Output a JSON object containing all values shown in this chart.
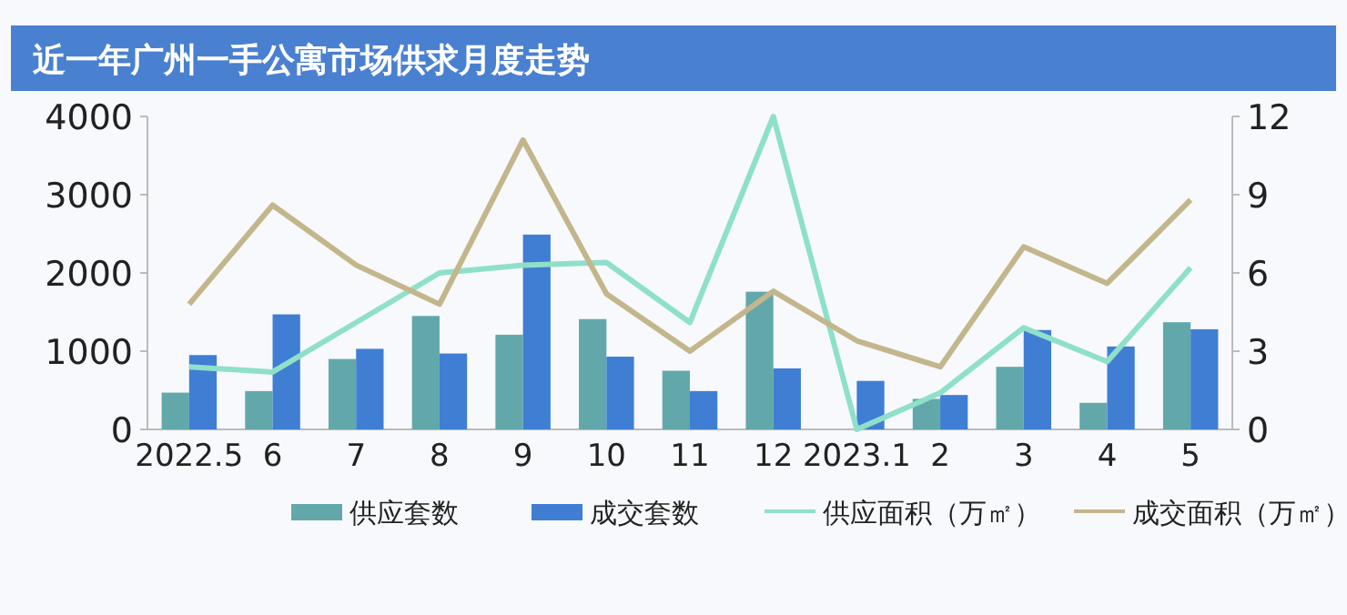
{
  "chart_data": {
    "type": "bar",
    "title": "近一年广州一手公寓市场供求月度走势",
    "categories": [
      "2022.5",
      "6",
      "7",
      "8",
      "9",
      "10",
      "11",
      "12",
      "2023.1",
      "2",
      "3",
      "4",
      "5"
    ],
    "series": [
      {
        "name": "供应套数",
        "color": "#62a8ab",
        "values": [
          470,
          490,
          900,
          1450,
          1210,
          1410,
          750,
          1760,
          0,
          390,
          800,
          340,
          1370
        ]
      },
      {
        "name": "成交套数",
        "color": "#3f7ed3",
        "values": [
          950,
          1470,
          1030,
          970,
          2490,
          930,
          490,
          780,
          620,
          440,
          1270,
          1060,
          1280
        ]
      },
      {
        "name": "供应面积（万㎡）",
        "type": "line",
        "axis": "y2",
        "color": "#8fe0c9",
        "values": [
          2.4,
          2.2,
          4.1,
          6.0,
          6.3,
          6.4,
          4.1,
          12.0,
          0,
          1.4,
          3.9,
          2.6,
          6.2
        ]
      },
      {
        "name": "成交面积（万㎡）",
        "type": "line",
        "axis": "y2",
        "color": "#c4b68c",
        "values": [
          4.8,
          8.6,
          6.3,
          4.8,
          11.1,
          5.2,
          3.0,
          5.3,
          3.4,
          2.4,
          7.0,
          5.6,
          8.8
        ]
      }
    ],
    "ylim": [
      0,
      4000
    ],
    "yticks": [
      0,
      1000,
      2000,
      3000,
      4000
    ],
    "y2lim": [
      0,
      12
    ],
    "y2ticks": [
      0,
      3,
      6,
      9,
      12
    ],
    "grid": false,
    "legend": "bottom"
  }
}
